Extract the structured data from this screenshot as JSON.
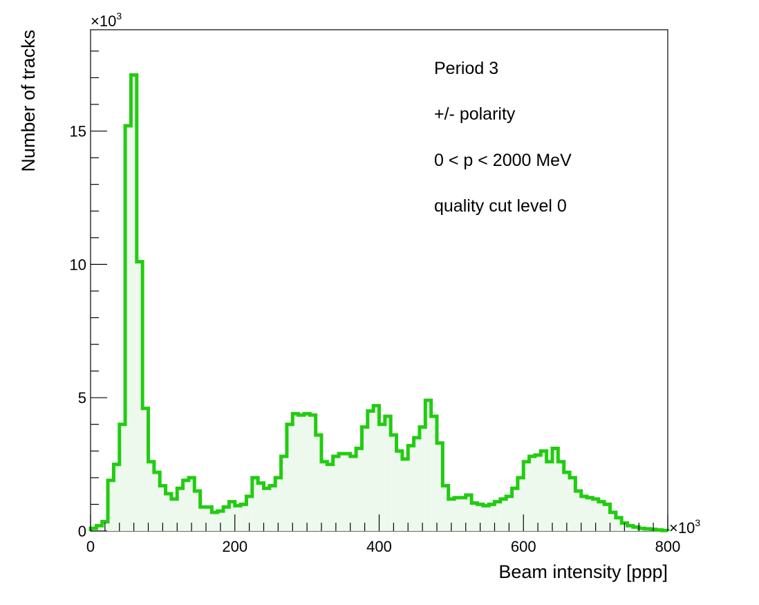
{
  "chart_data": {
    "type": "bar",
    "xlabel": "Beam intensity [ppp]",
    "ylabel": "Number of tracks",
    "x_multiplier": "×10",
    "x_multiplier_exp": "3",
    "y_multiplier": "×10",
    "y_multiplier_exp": "3",
    "xlim": [
      0,
      800
    ],
    "ylim": [
      0,
      18.8
    ],
    "x_ticks": [
      0,
      200,
      400,
      600,
      800
    ],
    "x_tick_labels": [
      "0",
      "200",
      "400",
      "600",
      "800"
    ],
    "y_ticks": [
      0,
      5,
      10,
      15
    ],
    "y_tick_labels": [
      "0",
      "5",
      "10",
      "15"
    ],
    "annotations": [
      "Period 3",
      "+/- polarity",
      "0 < p < 2000 MeV",
      "quality cut level 0"
    ],
    "line_color": "#22cc11",
    "fill_color": "#eef9ee",
    "bin_width": 8,
    "bin_starts": [
      0,
      8,
      16,
      24,
      32,
      40,
      48,
      56,
      64,
      72,
      80,
      88,
      96,
      104,
      112,
      120,
      128,
      136,
      144,
      152,
      160,
      168,
      176,
      184,
      192,
      200,
      208,
      216,
      224,
      232,
      240,
      248,
      256,
      264,
      272,
      280,
      288,
      296,
      304,
      312,
      320,
      328,
      336,
      344,
      352,
      360,
      368,
      376,
      384,
      392,
      400,
      408,
      416,
      424,
      432,
      440,
      448,
      456,
      464,
      472,
      480,
      488,
      496,
      504,
      512,
      520,
      528,
      536,
      544,
      552,
      560,
      568,
      576,
      584,
      592,
      600,
      608,
      616,
      624,
      632,
      640,
      648,
      656,
      664,
      672,
      680,
      688,
      696,
      704,
      712,
      720,
      728,
      736,
      744,
      752,
      760,
      768,
      776,
      784,
      792
    ],
    "values": [
      0.1,
      0.2,
      0.35,
      1.9,
      2.5,
      4.0,
      15.2,
      17.1,
      10.1,
      4.6,
      2.6,
      2.2,
      1.7,
      1.4,
      1.2,
      1.6,
      1.9,
      2.0,
      1.5,
      0.9,
      0.9,
      0.7,
      0.75,
      0.9,
      1.1,
      0.95,
      1.0,
      1.3,
      2.0,
      1.8,
      1.6,
      1.7,
      2.0,
      2.8,
      4.0,
      4.4,
      4.35,
      4.4,
      4.35,
      3.6,
      2.6,
      2.5,
      2.8,
      2.9,
      2.9,
      2.8,
      3.1,
      3.9,
      4.5,
      4.7,
      4.0,
      4.3,
      3.6,
      3.0,
      2.7,
      3.2,
      3.5,
      3.9,
      4.9,
      4.3,
      3.3,
      1.7,
      1.2,
      1.25,
      1.25,
      1.35,
      1.05,
      1.0,
      0.95,
      1.0,
      1.1,
      1.2,
      1.3,
      1.6,
      2.0,
      2.6,
      2.8,
      2.85,
      3.0,
      2.6,
      3.1,
      2.6,
      2.2,
      2.0,
      1.5,
      1.3,
      1.25,
      1.2,
      1.1,
      1.0,
      0.7,
      0.5,
      0.3,
      0.2,
      0.15,
      0.1,
      0.08,
      0.06,
      0.04,
      0.02
    ]
  }
}
